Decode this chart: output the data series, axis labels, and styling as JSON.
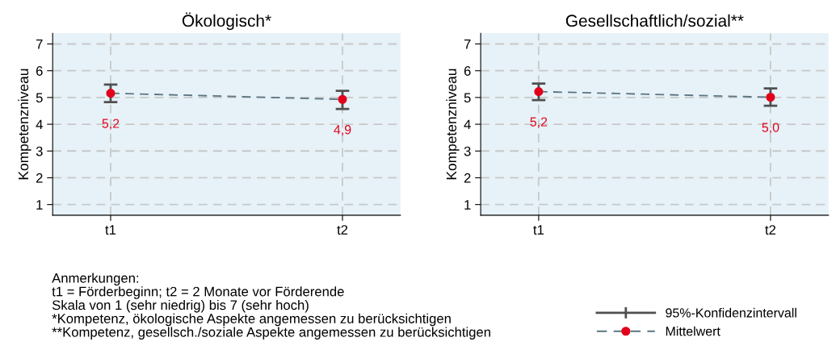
{
  "chart_data": [
    {
      "type": "line",
      "title": "Ökologisch*",
      "ylabel": "Kompetenzniveau",
      "categories": [
        "t1",
        "t2"
      ],
      "series": [
        {
          "color": "#e3001b",
          "values": [
            5.16,
            4.93
          ],
          "errors": [
            [
              4.83,
              5.48
            ],
            [
              4.57,
              5.25
            ]
          ],
          "value_labels": [
            "5,2",
            "4,9"
          ]
        }
      ],
      "ylim": [
        0.6,
        7.4
      ],
      "yticks": [
        1,
        2,
        3,
        4,
        5,
        6,
        7
      ],
      "grid": true,
      "marker": "circle",
      "line_style": "dashed",
      "annotations": [
        "Anmerkungen:\nt1 = Förderbeginn; t2 = 2 Monate vor Förderende\nSkala von 1 (sehr niedrig) bis 7 (sehr hoch)\n*Kompetenz, ökologische Aspekte angemessen zu berücksichtigen\n**Kompetenz, gesellsch./soziale Aspekte angemessen zu berücksichtigen"
      ]
    },
    {
      "type": "line",
      "title": "Gesellschaftlich/sozial**",
      "ylabel": "Kompetenzniveau",
      "categories": [
        "t1",
        "t2"
      ],
      "series": [
        {
          "name": "Mittelwert",
          "color": "#e3001b",
          "values": [
            5.22,
            5.01
          ],
          "errors": [
            [
              4.9,
              5.52
            ],
            [
              4.69,
              5.34
            ]
          ],
          "value_labels": [
            "5,2",
            "5,0"
          ]
        }
      ],
      "ylim": [
        0.6,
        7.4
      ],
      "yticks": [
        1,
        2,
        3,
        4,
        5,
        6,
        7
      ],
      "grid": true,
      "marker": "circle",
      "line_style": "dashed",
      "legend": "bottom right",
      "annotations": [
        "95%-Konfidenzintervall"
      ]
    }
  ]
}
